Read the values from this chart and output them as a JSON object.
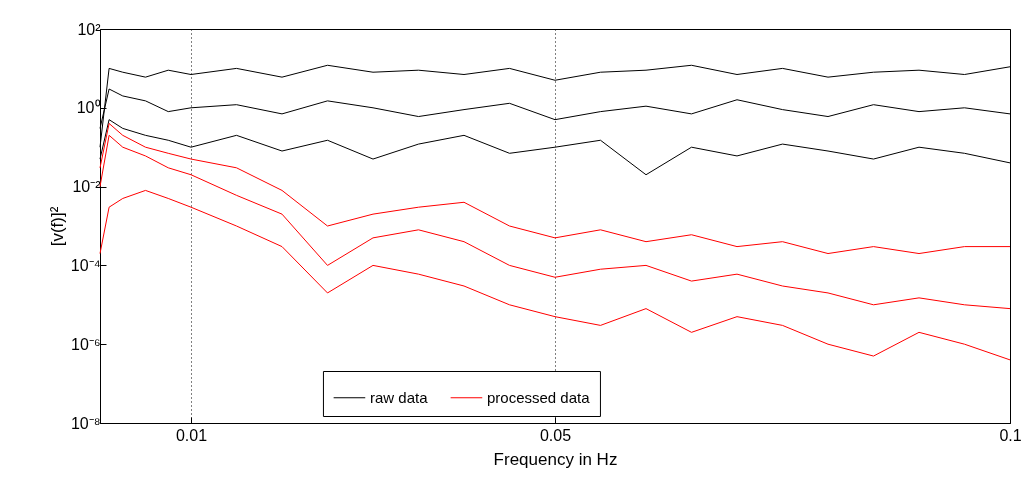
{
  "chart_data": {
    "type": "line",
    "xlabel": "Frequency in Hz",
    "ylabel": "[v(f)]²",
    "x": [
      0,
      0.001,
      0.0025,
      0.005,
      0.0075,
      0.01,
      0.015,
      0.02,
      0.025,
      0.03,
      0.035,
      0.04,
      0.045,
      0.05,
      0.055,
      0.06,
      0.065,
      0.07,
      0.075,
      0.08,
      0.085,
      0.09,
      0.095,
      0.1
    ],
    "series": [
      {
        "name": "raw data",
        "color": "#000000",
        "values": [
          0.3,
          3,
          2,
          1.5,
          0.8,
          1,
          1.2,
          0.7,
          1.5,
          1,
          0.6,
          0.9,
          1.3,
          0.5,
          0.8,
          1.1,
          0.7,
          1.6,
          0.9,
          0.6,
          1.2,
          0.8,
          1,
          0.7
        ]
      },
      {
        "color": "#000000",
        "values": [
          0.1,
          10,
          8,
          6,
          9,
          7,
          10,
          6,
          12,
          8,
          9,
          7,
          10,
          5,
          8,
          9,
          12,
          7,
          10,
          6,
          8,
          9,
          7,
          11
        ]
      },
      {
        "color": "#000000",
        "values": [
          0.05,
          0.5,
          0.3,
          0.2,
          0.15,
          0.1,
          0.2,
          0.08,
          0.15,
          0.05,
          0.12,
          0.2,
          0.07,
          0.1,
          0.15,
          0.02,
          0.1,
          0.06,
          0.12,
          0.08,
          0.05,
          0.1,
          0.07,
          0.04
        ]
      },
      {
        "name": "processed data",
        "color": "#ff0000",
        "values": [
          0.01,
          0.2,
          0.1,
          0.06,
          0.03,
          0.02,
          0.006,
          0.002,
          0.0001,
          0.0005,
          0.0008,
          0.0004,
          0.0001,
          5e-05,
          8e-05,
          0.0001,
          4e-05,
          6e-05,
          3e-05,
          2e-05,
          1e-05,
          1.5e-05,
          1e-05,
          8e-06
        ]
      },
      {
        "color": "#ff0000",
        "values": [
          0.03,
          0.4,
          0.2,
          0.1,
          0.07,
          0.05,
          0.03,
          0.008,
          0.001,
          0.002,
          0.003,
          0.004,
          0.001,
          0.0005,
          0.0008,
          0.0004,
          0.0006,
          0.0003,
          0.0004,
          0.0002,
          0.0003,
          0.0002,
          0.0003,
          0.0003
        ]
      },
      {
        "color": "#ff0000",
        "values": [
          0.0002,
          0.003,
          0.005,
          0.008,
          0.005,
          0.003,
          0.001,
          0.0003,
          2e-05,
          0.0001,
          6e-05,
          3e-05,
          1e-05,
          5e-06,
          3e-06,
          8e-06,
          2e-06,
          5e-06,
          3e-06,
          1e-06,
          5e-07,
          2e-06,
          1e-06,
          4e-07
        ]
      }
    ],
    "xlim": [
      0,
      0.1
    ],
    "xticks": [
      0.01,
      0.05,
      0.1
    ],
    "ylim": [
      1e-08,
      100
    ],
    "yticks": [
      {
        "value": 100,
        "label": "10²"
      },
      {
        "value": 1,
        "label": "10⁰"
      },
      {
        "value": 0.01,
        "label": "10⁻²"
      },
      {
        "value": 0.0001,
        "label": "10⁻⁴"
      },
      {
        "value": 1e-06,
        "label": "10⁻⁶"
      },
      {
        "value": 1e-08,
        "label": "10⁻⁸"
      }
    ],
    "log": "y",
    "grid": "x",
    "legend": "bottom",
    "marker": "none",
    "line_style": "solid"
  }
}
